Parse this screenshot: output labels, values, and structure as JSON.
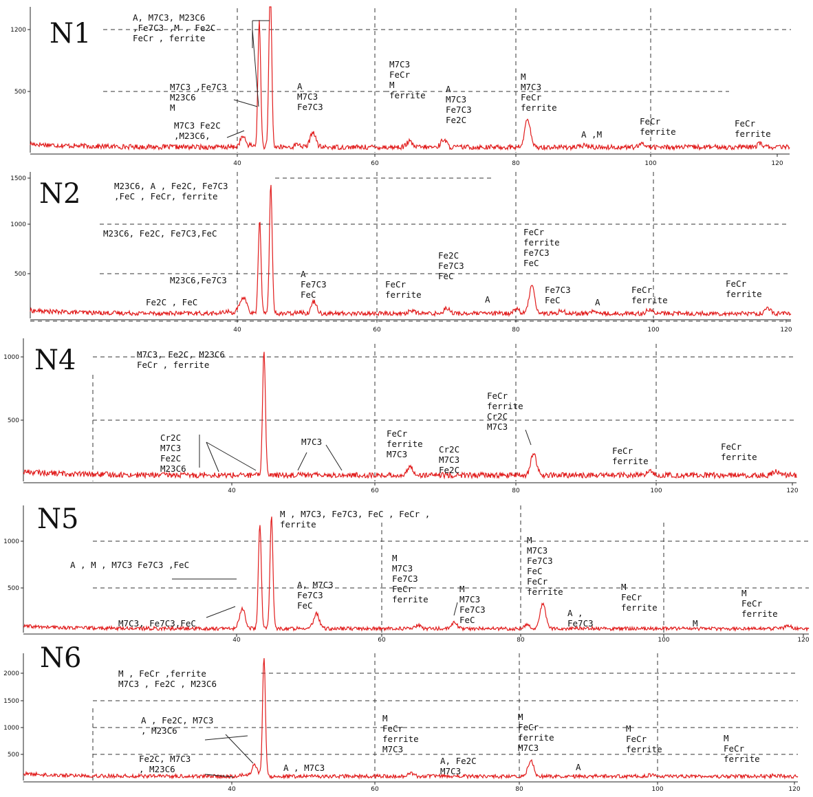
{
  "colors": {
    "trace": "#e11b1b",
    "axis": "#222222",
    "grid": "#333333",
    "text": "#111111"
  },
  "chart_data": [
    {
      "type": "line",
      "title": "N1",
      "x_ticks": [
        40,
        60,
        80,
        100,
        120
      ],
      "y_ticks": [
        500,
        1200
      ],
      "xlim": [
        10,
        120
      ],
      "ylim": [
        0,
        1450
      ],
      "series": [
        {
          "baseline": 45,
          "peaks": [
            {
              "x": 40.8,
              "y": 130
            },
            {
              "x": 42.0,
              "y": 60
            },
            {
              "x": 43.2,
              "y": 1080
            },
            {
              "x": 44.8,
              "y": 1440
            },
            {
              "x": 48.8,
              "y": 70
            },
            {
              "x": 51.0,
              "y": 170
            },
            {
              "x": 65.0,
              "y": 90
            },
            {
              "x": 70.0,
              "y": 110
            },
            {
              "x": 82.2,
              "y": 280
            },
            {
              "x": 90.5,
              "y": 60
            },
            {
              "x": 99.0,
              "y": 75
            },
            {
              "x": 116.0,
              "y": 75
            }
          ]
        }
      ],
      "annotations": [
        {
          "lines": [
            "A, M7C3, M23C6",
            ",Fe7C3 ,M , Fe2C",
            "FeCr , ferrite"
          ]
        },
        {
          "lines": [
            "M7C3 ,Fe7C3",
            "M23C6",
            "M"
          ]
        },
        {
          "lines": [
            "M7C3  Fe2C",
            ",M23C6,"
          ]
        },
        {
          "lines": [
            "A",
            "M7C3",
            "Fe7C3"
          ]
        },
        {
          "lines": [
            "M7C3",
            "FeCr",
            "M",
            "ferrite"
          ]
        },
        {
          "lines": [
            "A",
            "M7C3",
            "Fe7C3",
            "Fe2C"
          ]
        },
        {
          "lines": [
            "M",
            "M7C3",
            "FeCr",
            "ferrite"
          ]
        },
        {
          "lines": [
            "A ,M"
          ]
        },
        {
          "lines": [
            "FeCr",
            "ferrite"
          ]
        },
        {
          "lines": [
            "FeCr",
            "ferrite"
          ]
        }
      ]
    },
    {
      "type": "line",
      "title": "N2",
      "x_ticks": [
        40,
        60,
        80,
        100,
        120
      ],
      "y_ticks": [
        500,
        1000,
        1500
      ],
      "xlim": [
        10,
        120
      ],
      "ylim": [
        0,
        1500
      ],
      "series": [
        {
          "baseline": 55,
          "peaks": [
            {
              "x": 38.5,
              "y": 80
            },
            {
              "x": 40.2,
              "y": 110
            },
            {
              "x": 41.0,
              "y": 230
            },
            {
              "x": 43.2,
              "y": 1120
            },
            {
              "x": 44.8,
              "y": 1500
            },
            {
              "x": 48.8,
              "y": 80
            },
            {
              "x": 51.0,
              "y": 190
            },
            {
              "x": 65.0,
              "y": 90
            },
            {
              "x": 70.0,
              "y": 120
            },
            {
              "x": 80.0,
              "y": 110
            },
            {
              "x": 82.2,
              "y": 380
            },
            {
              "x": 86.5,
              "y": 90
            },
            {
              "x": 91.0,
              "y": 80
            },
            {
              "x": 99.0,
              "y": 100
            },
            {
              "x": 116.0,
              "y": 110
            }
          ]
        }
      ],
      "annotations": [
        {
          "lines": [
            "M23C6, A , Fe2C, Fe7C3",
            ",FeC , FeCr, ferrite"
          ]
        },
        {
          "lines": [
            "M23C6, Fe2C, Fe7C3,FeC"
          ]
        },
        {
          "lines": [
            "M23C6,Fe7C3"
          ]
        },
        {
          "lines": [
            "Fe2C , FeC"
          ]
        },
        {
          "lines": [
            "A",
            "Fe7C3",
            "FeC"
          ]
        },
        {
          "lines": [
            "FeCr",
            "ferrite"
          ]
        },
        {
          "lines": [
            "Fe2C",
            "Fe7C3",
            "FeC"
          ]
        },
        {
          "lines": [
            "A"
          ]
        },
        {
          "lines": [
            "FeCr",
            "ferrite",
            "Fe7C3",
            "FeC"
          ]
        },
        {
          "lines": [
            "Fe7C3",
            "FeC"
          ]
        },
        {
          "lines": [
            "A"
          ]
        },
        {
          "lines": [
            "FeCr",
            "ferrite"
          ]
        },
        {
          "lines": [
            "FeCr",
            "ferrite"
          ]
        }
      ]
    },
    {
      "type": "line",
      "title": "N4",
      "x_ticks": [
        40,
        60,
        80,
        100,
        120
      ],
      "y_ticks": [
        500,
        1000
      ],
      "xlim": [
        10,
        120
      ],
      "ylim": [
        0,
        1100
      ],
      "series": [
        {
          "baseline": 50,
          "peaks": [
            {
              "x": 36.5,
              "y": 60
            },
            {
              "x": 44.5,
              "y": 1080
            },
            {
              "x": 49.5,
              "y": 70
            },
            {
              "x": 52.5,
              "y": 60
            },
            {
              "x": 65.0,
              "y": 120
            },
            {
              "x": 82.2,
              "y": 230
            },
            {
              "x": 98.5,
              "y": 80
            },
            {
              "x": 116.0,
              "y": 80
            }
          ]
        }
      ],
      "annotations": [
        {
          "lines": [
            "M7C3, Fe2C, M23C6",
            "FeCr , ferrite"
          ]
        },
        {
          "lines": [
            "Cr2C",
            "M7C3",
            "Fe2C",
            "M23C6"
          ]
        },
        {
          "lines": [
            "M7C3"
          ]
        },
        {
          "lines": [
            "FeCr",
            "ferrite",
            "M7C3"
          ]
        },
        {
          "lines": [
            "Cr2C",
            "M7C3",
            "Fe2C"
          ]
        },
        {
          "lines": [
            "FeCr",
            "ferrite",
            "Cr2C",
            "M7C3"
          ]
        },
        {
          "lines": [
            "FeCr",
            "ferrite"
          ]
        },
        {
          "lines": [
            "FeCr",
            "ferrite"
          ]
        }
      ]
    },
    {
      "type": "line",
      "title": "N5",
      "x_ticks": [
        40,
        60,
        80,
        100,
        120
      ],
      "y_ticks": [
        500,
        1000
      ],
      "xlim": [
        10,
        120
      ],
      "ylim": [
        0,
        1350
      ],
      "series": [
        {
          "baseline": 45,
          "peaks": [
            {
              "x": 40.8,
              "y": 270
            },
            {
              "x": 43.2,
              "y": 1230
            },
            {
              "x": 44.8,
              "y": 1320
            },
            {
              "x": 48.8,
              "y": 60
            },
            {
              "x": 51.0,
              "y": 210
            },
            {
              "x": 65.0,
              "y": 80
            },
            {
              "x": 70.0,
              "y": 110
            },
            {
              "x": 80.0,
              "y": 90
            },
            {
              "x": 82.2,
              "y": 330
            },
            {
              "x": 89.0,
              "y": 50
            },
            {
              "x": 116.0,
              "y": 80
            }
          ]
        }
      ],
      "annotations": [
        {
          "lines": [
            "M , M7C3, Fe7C3, FeC , FeCr ,",
            "ferrite"
          ]
        },
        {
          "lines": [
            "A , M , M7C3 Fe7C3 ,FeC"
          ]
        },
        {
          "lines": [
            "M7C3, Fe7C3,FeC"
          ]
        },
        {
          "lines": [
            "A, M7C3",
            "Fe7C3",
            "FeC"
          ]
        },
        {
          "lines": [
            "M",
            "M7C3",
            "Fe7C3",
            "FeCr",
            "ferrite"
          ]
        },
        {
          "lines": [
            "M",
            "M7C3",
            "Fe7C3",
            "FeC"
          ]
        },
        {
          "lines": [
            "M",
            "M7C3",
            "Fe7C3",
            "FeC",
            "FeCr",
            "ferrite"
          ]
        },
        {
          "lines": [
            "A ,",
            "Fe7C3"
          ]
        },
        {
          "lines": [
            "M",
            "FeCr",
            "ferrite"
          ]
        },
        {
          "lines": [
            "M"
          ]
        },
        {
          "lines": [
            "M",
            "FeCr",
            "ferrite"
          ]
        }
      ]
    },
    {
      "type": "line",
      "title": "N6",
      "x_ticks": [
        40,
        60,
        80,
        100,
        120
      ],
      "y_ticks": [
        500,
        1000,
        1500,
        2000
      ],
      "xlim": [
        10,
        120
      ],
      "ylim": [
        0,
        2400
      ],
      "series": [
        {
          "baseline": 80,
          "peaks": [
            {
              "x": 41.8,
              "y": 120
            },
            {
              "x": 43.2,
              "y": 300
            },
            {
              "x": 44.5,
              "y": 2380
            },
            {
              "x": 65.0,
              "y": 150
            },
            {
              "x": 81.8,
              "y": 390
            },
            {
              "x": 98.5,
              "y": 110
            },
            {
              "x": 116.0,
              "y": 100
            }
          ]
        }
      ],
      "annotations": [
        {
          "lines": [
            "M , FeCr ,ferrite",
            "M7C3 , Fe2C , M23C6"
          ]
        },
        {
          "lines": [
            "A , Fe2C, M7C3",
            ", M23C6"
          ]
        },
        {
          "lines": [
            "Fe2C, M7C3",
            ", M23C6"
          ]
        },
        {
          "lines": [
            "A , M7C3"
          ]
        },
        {
          "lines": [
            "M",
            "FeCr",
            "ferrite",
            "M7C3"
          ]
        },
        {
          "lines": [
            "A, Fe2C",
            "M7C3"
          ]
        },
        {
          "lines": [
            "M",
            "FeCr",
            "ferrite",
            "M7C3"
          ]
        },
        {
          "lines": [
            "A"
          ]
        },
        {
          "lines": [
            "M",
            "FeCr",
            "ferrite"
          ]
        },
        {
          "lines": [
            "M",
            "FeCr",
            "ferrite"
          ]
        }
      ]
    }
  ]
}
